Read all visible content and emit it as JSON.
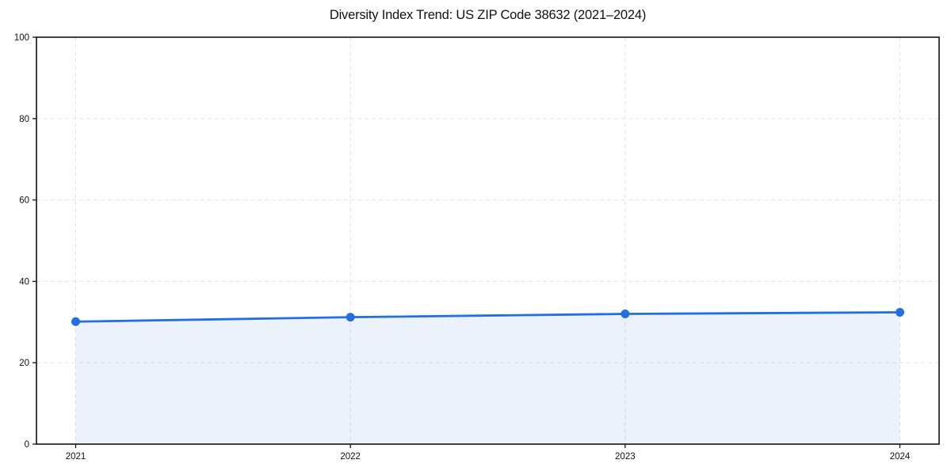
{
  "chart_data": {
    "type": "area",
    "title": "Diversity Index Trend: US ZIP Code 38632 (2021–2024)",
    "series_name": "Diversity Index",
    "x": [
      "2021",
      "2022",
      "2023",
      "2024"
    ],
    "values": [
      30.1,
      31.2,
      32.0,
      32.4
    ],
    "xlabel": "",
    "ylabel": "",
    "ylim": [
      0,
      100
    ],
    "yticks": [
      0,
      20,
      40,
      60,
      80,
      100
    ],
    "grid": true,
    "grid_style": "dashed",
    "legend_position": "none",
    "colors": {
      "line": "#236ee1",
      "marker": "#236ee1",
      "fill": "#236ee1",
      "fill_opacity": 0.09,
      "grid": "#e3e3e3",
      "spine": "#111111",
      "text": "#111111",
      "background": "#ffffff"
    }
  }
}
